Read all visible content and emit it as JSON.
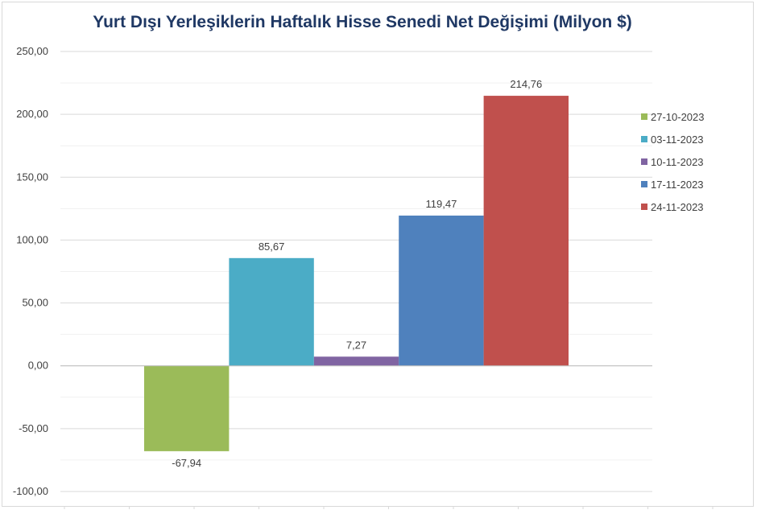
{
  "chart_data": {
    "type": "bar",
    "title": "Yurt Dışı Yerleşiklerin Haftalık Hisse Senedi Net Değişimi (Milyon $)",
    "xlabel": "",
    "ylabel": "",
    "ylim": [
      -100,
      250
    ],
    "ytick_step": 50,
    "y_tick_labels": [
      "250,00",
      "200,00",
      "150,00",
      "100,00",
      "50,00",
      "0,00",
      "-50,00",
      "-100,00"
    ],
    "grid": true,
    "legend_position": "right",
    "series": [
      {
        "name": "27-10-2023",
        "value": -67.94,
        "label": "-67,94",
        "color": "#9bbb59"
      },
      {
        "name": "03-11-2023",
        "value": 85.67,
        "label": "85,67",
        "color": "#4bacc6"
      },
      {
        "name": "10-11-2023",
        "value": 7.27,
        "label": "7,27",
        "color": "#8064a2"
      },
      {
        "name": "17-11-2023",
        "value": 119.47,
        "label": "119,47",
        "color": "#4f81bd"
      },
      {
        "name": "24-11-2023",
        "value": 214.76,
        "label": "214,76",
        "color": "#c0504d"
      }
    ]
  }
}
